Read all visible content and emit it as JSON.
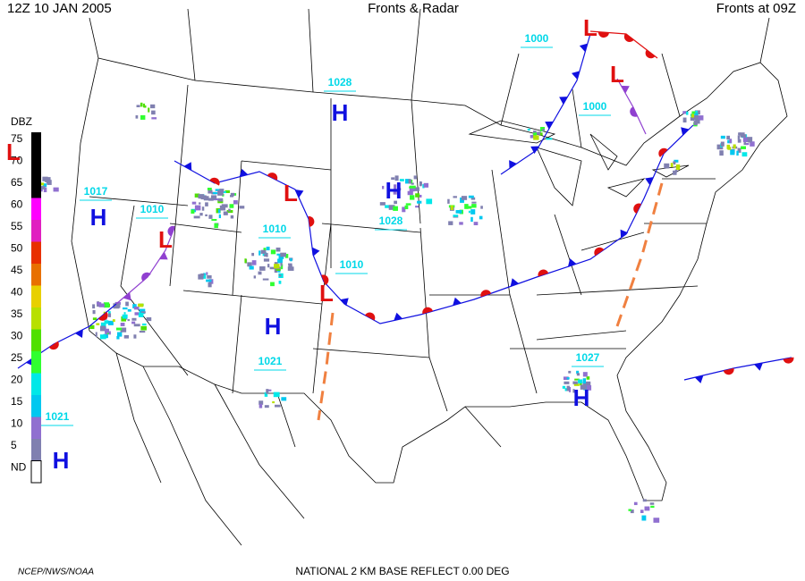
{
  "header": {
    "left": "12Z  10 JAN  2005",
    "center": "Fronts & Radar",
    "right": "Fronts at 09Z"
  },
  "legend": {
    "title": "DBZ",
    "levels": [
      {
        "label": "75",
        "color": "#000000"
      },
      {
        "label": "70",
        "color": "#000000"
      },
      {
        "label": "65",
        "color": "#000000"
      },
      {
        "label": "60",
        "color": "#ff00ff"
      },
      {
        "label": "55",
        "color": "#e020c0"
      },
      {
        "label": "50",
        "color": "#e83000"
      },
      {
        "label": "45",
        "color": "#e87000"
      },
      {
        "label": "40",
        "color": "#e8d000"
      },
      {
        "label": "35",
        "color": "#b8e000"
      },
      {
        "label": "30",
        "color": "#50e000"
      },
      {
        "label": "25",
        "color": "#30ff30"
      },
      {
        "label": "20",
        "color": "#00e8e8"
      },
      {
        "label": "15",
        "color": "#00c8f0"
      },
      {
        "label": "10",
        "color": "#9070d0"
      },
      {
        "label": "5",
        "color": "#8080b0"
      },
      {
        "label": "ND",
        "color": "#ffffff"
      }
    ]
  },
  "isobar_labels": [
    "1000",
    "1028",
    "1000",
    "1017",
    "1010",
    "1028",
    "1010",
    "1010",
    "1021",
    "1027",
    "1021"
  ],
  "highs": [
    "H",
    "H",
    "H",
    "H",
    "H",
    "H"
  ],
  "lows": [
    "L",
    "L",
    "L",
    "L",
    "L",
    "L"
  ],
  "footer": {
    "credit": "NCEP/NWS/NOAA",
    "product": "NATIONAL 2 KM BASE REFLECT 0.00 DEG"
  }
}
